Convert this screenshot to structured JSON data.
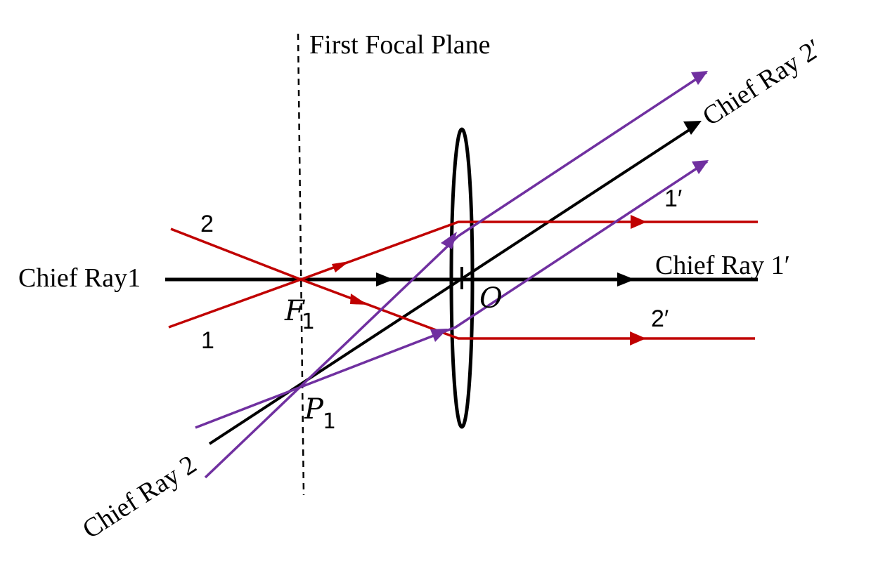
{
  "labels": {
    "first_focal_plane": "First Focal Plane",
    "chief_ray_1": "Chief Ray1",
    "chief_ray_1_prime": "Chief Ray 1′",
    "chief_ray_2": "Chief Ray 2",
    "chief_ray_2_prime": "Chief Ray 2′",
    "ray_1": "1",
    "ray_2": "2",
    "ray_1_prime": "1′",
    "ray_2_prime": "2′",
    "focal_point": "F",
    "focal_point_sub": "1",
    "point_p": "P",
    "point_p_sub": "1",
    "lens_center": "O"
  },
  "colors": {
    "chief_rays": "#000000",
    "red_rays": "#c00000",
    "purple_rays": "#7030a0",
    "lens": "#000000",
    "focal_plane": "#000000"
  }
}
